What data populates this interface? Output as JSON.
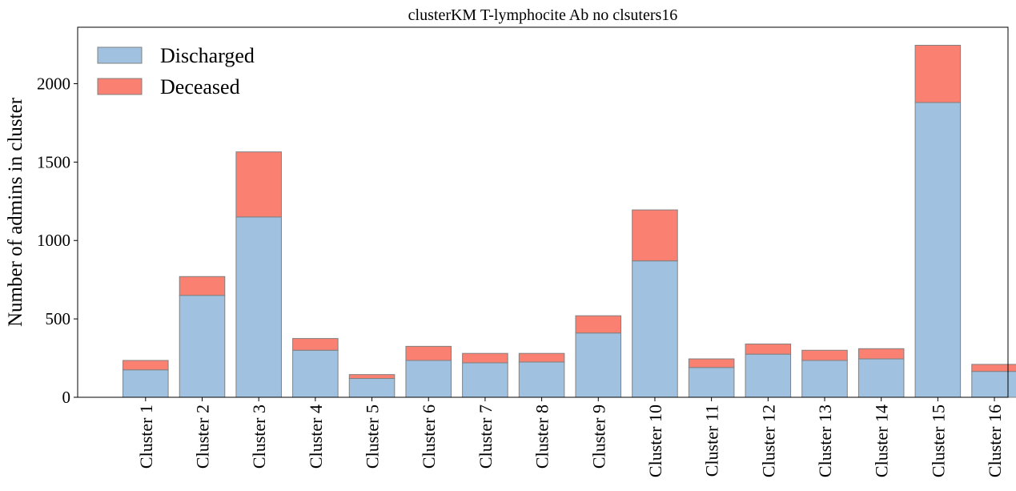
{
  "chart_data": {
    "type": "bar",
    "stacked": true,
    "title": "clusterKM T-lymphocite Ab no clsuters16",
    "xlabel": "",
    "ylabel": "Number of admins in cluster",
    "ylim": [
      0,
      2360
    ],
    "yticks": [
      0,
      500,
      1000,
      1500,
      2000
    ],
    "categories": [
      "Cluster 1",
      "Cluster 2",
      "Cluster 3",
      "Cluster 4",
      "Cluster 5",
      "Cluster 6",
      "Cluster 7",
      "Cluster 8",
      "Cluster 9",
      "Cluster 10",
      "Cluster 11",
      "Cluster 12",
      "Cluster 13",
      "Cluster 14",
      "Cluster 15",
      "Cluster 16"
    ],
    "series": [
      {
        "name": "Discharged",
        "color": "#a0c2e0",
        "values": [
          175,
          650,
          1150,
          300,
          120,
          235,
          220,
          225,
          410,
          870,
          190,
          275,
          235,
          245,
          1880,
          165
        ]
      },
      {
        "name": "Deceased",
        "color": "#fa8072",
        "values": [
          60,
          120,
          415,
          75,
          25,
          90,
          60,
          55,
          110,
          325,
          55,
          65,
          65,
          65,
          365,
          45
        ]
      }
    ],
    "legend_position": "top-left",
    "grid": false,
    "bar_edge_color": "#808080"
  }
}
